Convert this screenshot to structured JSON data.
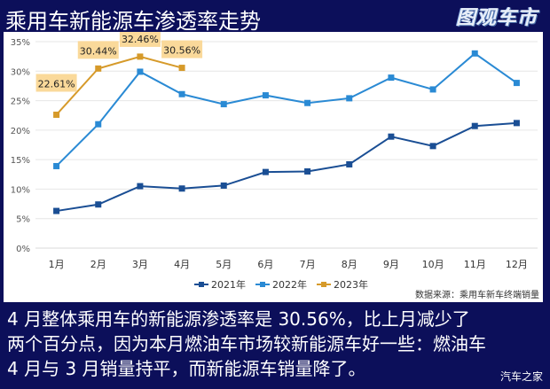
{
  "header": {
    "title": "乘用车新能源车渗透率走势",
    "logo": "图观车市"
  },
  "source_note": "数据来源：乘用车新车终端销量",
  "description": [
    "4 月整体乘用车的新能源渗透率是 30.56%，比上月减少了",
    "两个百分点，因为本月燃油车市场较新能源车好一些：燃油车",
    "4 月与 3 月销量持平，而新能源车销量降了。"
  ],
  "watermark": "汽车之家",
  "colors": {
    "background": "#0c0f5a",
    "s2021": "#1a4e94",
    "s2022": "#2a8ad4",
    "s2023": "#d69a2a",
    "label_bg": "#fad99a",
    "grid": "#e6e6e6"
  },
  "chart_data": {
    "type": "line",
    "title": "乘用车新能源车渗透率走势",
    "xlabel": "",
    "ylabel": "",
    "categories": [
      "1月",
      "2月",
      "3月",
      "4月",
      "5月",
      "6月",
      "7月",
      "8月",
      "9月",
      "10月",
      "11月",
      "12月"
    ],
    "y_ticks": [
      "0%",
      "5%",
      "10%",
      "15%",
      "20%",
      "25%",
      "30%",
      "35%"
    ],
    "ylim": [
      0,
      35
    ],
    "grid": true,
    "legend_position": "bottom",
    "series": [
      {
        "name": "2021年",
        "color": "#1a4e94",
        "values": [
          6.3,
          7.4,
          10.5,
          10.1,
          10.6,
          12.9,
          13.0,
          14.2,
          18.9,
          17.3,
          20.7,
          21.2
        ]
      },
      {
        "name": "2022年",
        "color": "#2a8ad4",
        "values": [
          13.9,
          21.0,
          29.9,
          26.1,
          24.4,
          25.9,
          24.6,
          25.4,
          28.9,
          26.9,
          33.0,
          28.0
        ]
      },
      {
        "name": "2023年",
        "color": "#d69a2a",
        "values": [
          22.61,
          30.44,
          32.46,
          30.56
        ],
        "data_labels": [
          "22.61%",
          "30.44%",
          "32.46%",
          "30.56%"
        ]
      }
    ]
  }
}
